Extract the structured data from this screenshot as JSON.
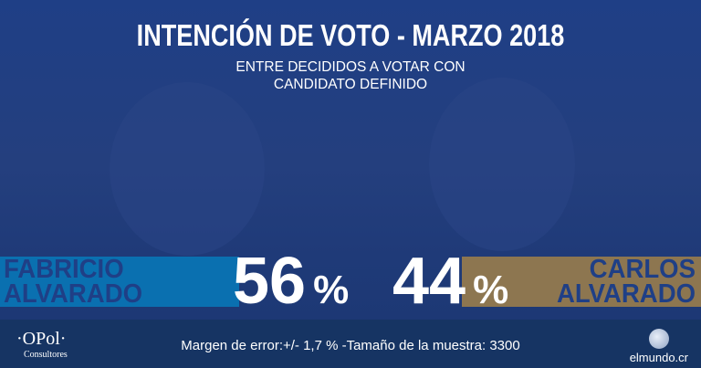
{
  "header": {
    "title": "INTENCIÓN DE VOTO - MARZO 2018",
    "subtitle_line1": "ENTRE DECIDIDOS A VOTAR CON",
    "subtitle_line2": "CANDIDATO DEFINIDO"
  },
  "candidates": [
    {
      "first": "FABRICIO",
      "last": "ALVARADO",
      "percent": "56",
      "unit": "%",
      "color": "#0a70b0"
    },
    {
      "first": "CARLOS",
      "last": "ALVARADO",
      "percent": "44",
      "unit": "%",
      "color": "#8d7650"
    }
  ],
  "footer": {
    "note": "Margen de error:+/- 1,7 % -Tamaño de la muestra: 3300",
    "logo_left": "·OPol·",
    "logo_left_sub": "Consultores",
    "logo_right": "elmundo.cr"
  }
}
